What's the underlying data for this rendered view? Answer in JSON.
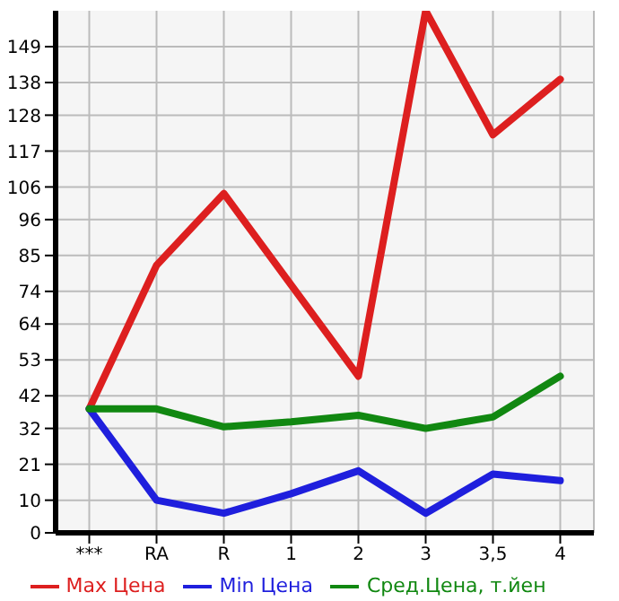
{
  "chart_data": {
    "type": "line",
    "categories": [
      "***",
      "RA",
      "R",
      "1",
      "2",
      "3",
      "3,5",
      "4"
    ],
    "series": [
      {
        "name": "Max Цена",
        "color": "#dd1f1f",
        "values": [
          38,
          82,
          104,
          76,
          48,
          160,
          122,
          139
        ]
      },
      {
        "name": "Min Цена",
        "color": "#1f1fdd",
        "values": [
          38,
          10,
          6,
          12,
          19,
          6,
          18,
          16
        ]
      },
      {
        "name": "Сред.Цена, т.йен",
        "color": "#118811",
        "values": [
          38,
          38,
          32.5,
          34,
          36,
          32,
          35.5,
          48
        ]
      }
    ],
    "ylim": [
      0,
      160
    ],
    "yticks": [
      0,
      10,
      21,
      32,
      42,
      53,
      64,
      74,
      85,
      96,
      106,
      117,
      128,
      138,
      149
    ],
    "grid": true,
    "legend": "bottom",
    "marker": "none",
    "line_style": "solid"
  }
}
